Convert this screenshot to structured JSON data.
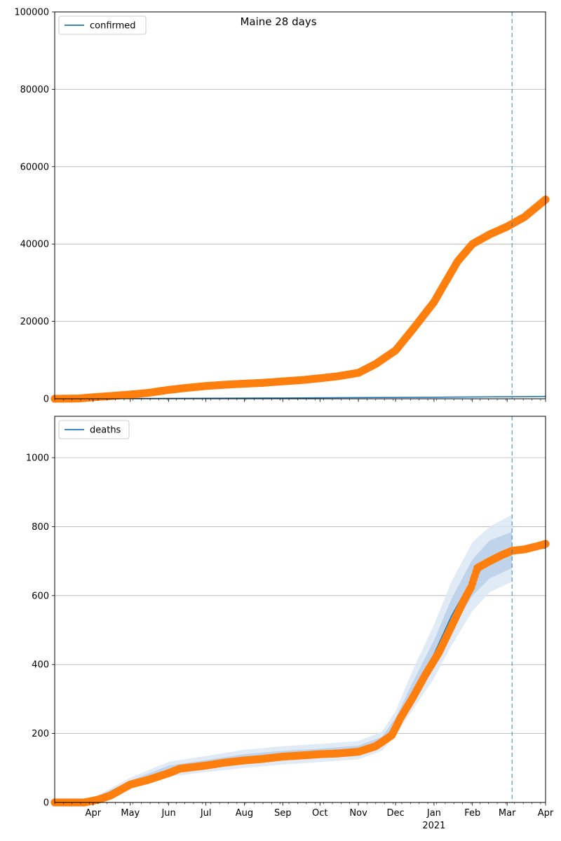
{
  "chart_data": {
    "title": "Maine 28 days",
    "x_axis": {
      "start": "2020-03-01",
      "end": "2021-04-01",
      "ticks": [
        {
          "date": "2020-04-01",
          "label": "Apr"
        },
        {
          "date": "2020-05-01",
          "label": "May"
        },
        {
          "date": "2020-06-01",
          "label": "Jun"
        },
        {
          "date": "2020-07-01",
          "label": "Jul"
        },
        {
          "date": "2020-08-01",
          "label": "Aug"
        },
        {
          "date": "2020-09-01",
          "label": "Sep"
        },
        {
          "date": "2020-10-01",
          "label": "Oct"
        },
        {
          "date": "2020-11-01",
          "label": "Nov"
        },
        {
          "date": "2020-12-01",
          "label": "Dec"
        },
        {
          "date": "2021-01-01",
          "label": "Jan"
        },
        {
          "date": "2021-02-01",
          "label": "Feb"
        },
        {
          "date": "2021-03-01",
          "label": "Mar"
        },
        {
          "date": "2021-04-01",
          "label": "Apr"
        }
      ],
      "year_label": {
        "date": "2021-01-01",
        "label": "2021"
      }
    },
    "forecast_start": "2021-03-05",
    "panels": [
      {
        "name": "confirmed",
        "type": "line+scatter",
        "legend": "confirmed",
        "legend_position": "upper-left",
        "ylim": [
          0,
          100000
        ],
        "yticks": [
          0,
          20000,
          40000,
          60000,
          80000,
          100000
        ],
        "grid": true,
        "model_line": [
          {
            "date": "2020-03-01",
            "value": 0
          },
          {
            "date": "2020-09-01",
            "value": 200
          },
          {
            "date": "2021-01-01",
            "value": 400
          },
          {
            "date": "2021-04-01",
            "value": 600
          }
        ],
        "observed": [
          {
            "date": "2020-03-01",
            "value": 0
          },
          {
            "date": "2020-03-20",
            "value": 60
          },
          {
            "date": "2020-04-01",
            "value": 400
          },
          {
            "date": "2020-04-15",
            "value": 700
          },
          {
            "date": "2020-05-01",
            "value": 1100
          },
          {
            "date": "2020-05-15",
            "value": 1500
          },
          {
            "date": "2020-06-01",
            "value": 2300
          },
          {
            "date": "2020-06-15",
            "value": 2800
          },
          {
            "date": "2020-07-01",
            "value": 3300
          },
          {
            "date": "2020-07-15",
            "value": 3600
          },
          {
            "date": "2020-08-01",
            "value": 3900
          },
          {
            "date": "2020-08-15",
            "value": 4100
          },
          {
            "date": "2020-09-01",
            "value": 4500
          },
          {
            "date": "2020-09-15",
            "value": 4800
          },
          {
            "date": "2020-10-01",
            "value": 5300
          },
          {
            "date": "2020-10-15",
            "value": 5800
          },
          {
            "date": "2020-11-01",
            "value": 6700
          },
          {
            "date": "2020-11-15",
            "value": 9000
          },
          {
            "date": "2020-12-01",
            "value": 12500
          },
          {
            "date": "2020-12-15",
            "value": 18000
          },
          {
            "date": "2021-01-01",
            "value": 25000
          },
          {
            "date": "2021-01-10",
            "value": 30000
          },
          {
            "date": "2021-01-20",
            "value": 35500
          },
          {
            "date": "2021-02-01",
            "value": 40000
          },
          {
            "date": "2021-02-15",
            "value": 42500
          },
          {
            "date": "2021-03-01",
            "value": 44500
          },
          {
            "date": "2021-03-15",
            "value": 47000
          },
          {
            "date": "2021-04-01",
            "value": 51500
          }
        ]
      },
      {
        "name": "deaths",
        "type": "line+scatter+bands",
        "legend": "deaths",
        "legend_position": "upper-left",
        "ylim": [
          0,
          1120
        ],
        "yticks": [
          0,
          200,
          400,
          600,
          800,
          1000
        ],
        "grid": true,
        "model_line": [
          {
            "date": "2020-03-01",
            "value": 0
          },
          {
            "date": "2020-03-25",
            "value": 0
          },
          {
            "date": "2020-04-15",
            "value": 25
          },
          {
            "date": "2020-05-01",
            "value": 55
          },
          {
            "date": "2020-06-01",
            "value": 95
          },
          {
            "date": "2020-07-01",
            "value": 110
          },
          {
            "date": "2020-08-01",
            "value": 125
          },
          {
            "date": "2020-09-01",
            "value": 135
          },
          {
            "date": "2020-10-01",
            "value": 142
          },
          {
            "date": "2020-11-01",
            "value": 150
          },
          {
            "date": "2020-11-20",
            "value": 175
          },
          {
            "date": "2020-12-01",
            "value": 225
          },
          {
            "date": "2020-12-15",
            "value": 320
          },
          {
            "date": "2021-01-01",
            "value": 430
          },
          {
            "date": "2021-01-15",
            "value": 540
          },
          {
            "date": "2021-02-01",
            "value": 650
          },
          {
            "date": "2021-02-15",
            "value": 700
          },
          {
            "date": "2021-03-05",
            "value": 725
          },
          {
            "date": "2021-04-01",
            "value": 738
          }
        ],
        "bands": [
          {
            "date": "2020-03-25",
            "lo2": 0,
            "lo1": 0,
            "hi1": 0,
            "hi2": 0
          },
          {
            "date": "2020-05-01",
            "lo2": 40,
            "lo1": 47,
            "hi1": 63,
            "hi2": 72
          },
          {
            "date": "2020-06-01",
            "lo2": 75,
            "lo1": 85,
            "hi1": 107,
            "hi2": 118
          },
          {
            "date": "2020-07-01",
            "lo2": 88,
            "lo1": 98,
            "hi1": 123,
            "hi2": 135
          },
          {
            "date": "2020-08-01",
            "lo2": 100,
            "lo1": 112,
            "hi1": 140,
            "hi2": 153
          },
          {
            "date": "2020-09-01",
            "lo2": 110,
            "lo1": 122,
            "hi1": 150,
            "hi2": 163
          },
          {
            "date": "2020-10-01",
            "lo2": 117,
            "lo1": 129,
            "hi1": 156,
            "hi2": 170
          },
          {
            "date": "2020-11-01",
            "lo2": 125,
            "lo1": 137,
            "hi1": 165,
            "hi2": 178
          },
          {
            "date": "2020-11-20",
            "lo2": 150,
            "lo1": 162,
            "hi1": 190,
            "hi2": 205
          },
          {
            "date": "2020-12-01",
            "lo2": 195,
            "lo1": 210,
            "hi1": 245,
            "hi2": 265
          },
          {
            "date": "2020-12-15",
            "lo2": 270,
            "lo1": 295,
            "hi1": 350,
            "hi2": 385
          },
          {
            "date": "2021-01-01",
            "lo2": 360,
            "lo1": 395,
            "hi1": 470,
            "hi2": 515
          },
          {
            "date": "2021-01-15",
            "lo2": 455,
            "lo1": 500,
            "hi1": 590,
            "hi2": 640
          },
          {
            "date": "2021-02-01",
            "lo2": 555,
            "lo1": 600,
            "hi1": 705,
            "hi2": 755
          },
          {
            "date": "2021-02-15",
            "lo2": 610,
            "lo1": 650,
            "hi1": 760,
            "hi2": 800
          },
          {
            "date": "2021-03-05",
            "lo2": 640,
            "lo1": 680,
            "hi1": 785,
            "hi2": 835
          }
        ],
        "observed": [
          {
            "date": "2020-03-01",
            "value": 0
          },
          {
            "date": "2020-03-25",
            "value": 0
          },
          {
            "date": "2020-04-05",
            "value": 8
          },
          {
            "date": "2020-04-15",
            "value": 20
          },
          {
            "date": "2020-04-25",
            "value": 40
          },
          {
            "date": "2020-05-01",
            "value": 52
          },
          {
            "date": "2020-05-15",
            "value": 65
          },
          {
            "date": "2020-06-01",
            "value": 85
          },
          {
            "date": "2020-06-10",
            "value": 98
          },
          {
            "date": "2020-07-01",
            "value": 107
          },
          {
            "date": "2020-07-15",
            "value": 115
          },
          {
            "date": "2020-08-01",
            "value": 122
          },
          {
            "date": "2020-08-15",
            "value": 126
          },
          {
            "date": "2020-09-01",
            "value": 133
          },
          {
            "date": "2020-09-15",
            "value": 136
          },
          {
            "date": "2020-10-01",
            "value": 140
          },
          {
            "date": "2020-10-15",
            "value": 142
          },
          {
            "date": "2020-11-01",
            "value": 147
          },
          {
            "date": "2020-11-15",
            "value": 163
          },
          {
            "date": "2020-11-28",
            "value": 195
          },
          {
            "date": "2020-12-05",
            "value": 245
          },
          {
            "date": "2020-12-15",
            "value": 305
          },
          {
            "date": "2020-12-25",
            "value": 370
          },
          {
            "date": "2021-01-05",
            "value": 435
          },
          {
            "date": "2021-01-15",
            "value": 510
          },
          {
            "date": "2021-01-25",
            "value": 585
          },
          {
            "date": "2021-01-31",
            "value": 625
          },
          {
            "date": "2021-02-05",
            "value": 680
          },
          {
            "date": "2021-02-15",
            "value": 700
          },
          {
            "date": "2021-02-25",
            "value": 718
          },
          {
            "date": "2021-03-05",
            "value": 730
          },
          {
            "date": "2021-03-15",
            "value": 734
          },
          {
            "date": "2021-03-25",
            "value": 743
          },
          {
            "date": "2021-04-01",
            "value": 750
          }
        ]
      }
    ],
    "colors": {
      "model": "#1f77b4",
      "observed": "#ff7f0e",
      "band_outer": "#dce7f3",
      "band_inner": "#b8cfe7",
      "grid": "#b0b0b0",
      "forecast_line": "#1f77b4"
    }
  }
}
